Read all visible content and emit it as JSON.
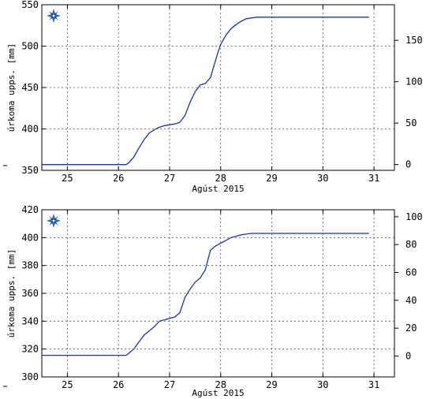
{
  "chart_data": [
    {
      "type": "line",
      "xlabel": "Agúst 2015",
      "ylabel": "úrkoma upps. [mm]",
      "x_ticks": [
        "25",
        "26",
        "27",
        "28",
        "29",
        "30",
        "31"
      ],
      "x_range": [
        24.5,
        31.4
      ],
      "y_left_ticks": [
        "350",
        "400",
        "450",
        "500",
        "550"
      ],
      "y_left_range": [
        350,
        550
      ],
      "y_right_ticks": [
        "0",
        "50",
        "100",
        "150"
      ],
      "y_right_range": [
        -7,
        193
      ],
      "grid": true,
      "series": [
        {
          "color": "#1f2fbf",
          "x": [
            24.5,
            26.15,
            26.2,
            26.3,
            26.4,
            26.5,
            26.6,
            26.7,
            26.8,
            26.9,
            27.0,
            27.1,
            27.2,
            27.3,
            27.4,
            27.5,
            27.6,
            27.7,
            27.8,
            27.9,
            27.95,
            28.0,
            28.1,
            28.2,
            28.3,
            28.4,
            28.5,
            28.6,
            28.7,
            28.8,
            28.9,
            30.9
          ],
          "y": [
            357,
            357,
            359,
            366,
            377,
            387,
            395,
            399,
            402,
            404,
            405,
            406,
            408,
            416,
            432,
            445,
            453,
            455,
            462,
            483,
            493,
            502,
            513,
            521,
            526,
            530,
            533,
            534,
            535,
            535,
            535,
            535
          ]
        }
      ]
    },
    {
      "type": "line",
      "xlabel": "Agúst 2015",
      "ylabel": "úrkoma upps. [mm]",
      "x_ticks": [
        "25",
        "26",
        "27",
        "28",
        "29",
        "30",
        "31"
      ],
      "x_range": [
        24.5,
        31.4
      ],
      "y_left_ticks": [
        "300",
        "320",
        "340",
        "360",
        "380",
        "400",
        "420"
      ],
      "y_left_range": [
        300,
        420
      ],
      "y_right_ticks": [
        "0",
        "20",
        "40",
        "60",
        "80",
        "100"
      ],
      "y_right_range": [
        -15,
        105
      ],
      "grid": true,
      "series": [
        {
          "color": "#1f2fbf",
          "x": [
            24.5,
            26.15,
            26.2,
            26.3,
            26.4,
            26.5,
            26.6,
            26.7,
            26.8,
            26.9,
            27.0,
            27.1,
            27.2,
            27.3,
            27.4,
            27.5,
            27.6,
            27.7,
            27.8,
            27.9,
            28.0,
            28.1,
            28.2,
            28.3,
            28.4,
            28.5,
            28.6,
            28.7,
            28.8,
            30.9
          ],
          "y": [
            315.5,
            315.5,
            317,
            320,
            325,
            330,
            333,
            336,
            340,
            341,
            342,
            343,
            346,
            357,
            363,
            368,
            371,
            377,
            391,
            394,
            396,
            398,
            400,
            401,
            402,
            402.5,
            403,
            403,
            403,
            403
          ]
        }
      ]
    }
  ],
  "icon": "compass-star-icon"
}
